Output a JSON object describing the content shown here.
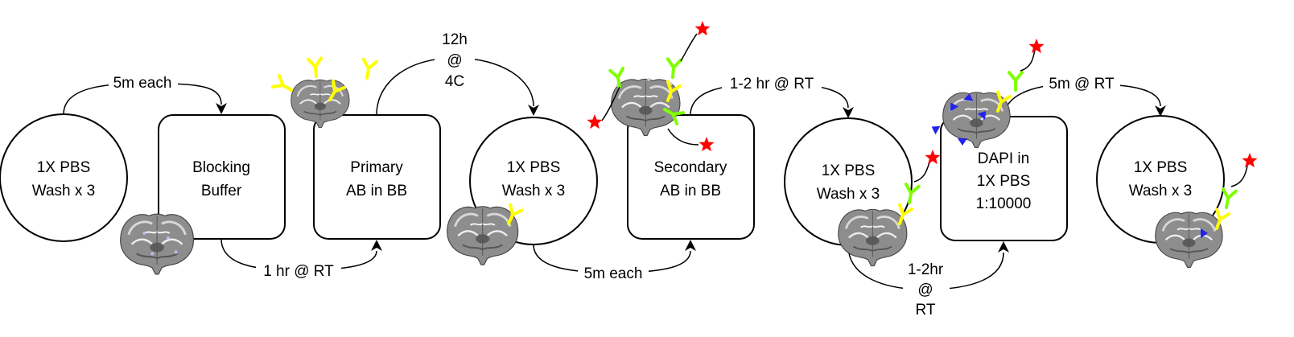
{
  "steps": [
    {
      "id": "wash1",
      "shape": "circle",
      "lines": [
        "1X PBS",
        "Wash x 3"
      ]
    },
    {
      "id": "blocking",
      "shape": "rounded-rect",
      "lines": [
        "Blocking",
        "Buffer"
      ]
    },
    {
      "id": "primary",
      "shape": "rounded-rect",
      "lines": [
        "Primary",
        "AB in BB"
      ]
    },
    {
      "id": "wash2",
      "shape": "circle",
      "lines": [
        "1X PBS",
        "Wash x 3"
      ]
    },
    {
      "id": "secondary",
      "shape": "rounded-rect",
      "lines": [
        "Secondary",
        "AB in BB"
      ]
    },
    {
      "id": "wash3",
      "shape": "circle",
      "lines": [
        "1X PBS",
        "Wash x 3"
      ]
    },
    {
      "id": "dapi",
      "shape": "rounded-rect",
      "lines": [
        "DAPI in",
        "1X PBS",
        "1:10000"
      ]
    },
    {
      "id": "wash4",
      "shape": "circle",
      "lines": [
        "1X PBS",
        "Wash x 3"
      ]
    }
  ],
  "connectors": [
    {
      "from": "wash1",
      "to": "blocking",
      "label": [
        "5m each"
      ]
    },
    {
      "from": "blocking",
      "to": "primary",
      "label": [
        "1 hr @ RT"
      ]
    },
    {
      "from": "primary",
      "to": "wash2",
      "label": [
        "12h",
        "@",
        "4C"
      ]
    },
    {
      "from": "wash2",
      "to": "secondary",
      "label": [
        "5m each"
      ]
    },
    {
      "from": "secondary",
      "to": "wash3",
      "label": [
        "1-2 hr @ RT"
      ]
    },
    {
      "from": "wash3",
      "to": "dapi",
      "label": [
        "1-2hr",
        "@",
        "RT"
      ]
    },
    {
      "from": "dapi",
      "to": "wash4",
      "label": [
        "5m @ RT"
      ]
    }
  ],
  "icons": [
    "brain-section-icon",
    "primary-antibody-icon",
    "secondary-antibody-icon",
    "fluorophore-star-icon",
    "dapi-marker-icon"
  ],
  "colors": {
    "primary_antibody": "#ffff00",
    "secondary_antibody": "#80ff00",
    "fluorophore": "#ff0000",
    "dapi": "#2222ee",
    "brain": "#8a8a8a",
    "stroke": "#000000"
  }
}
